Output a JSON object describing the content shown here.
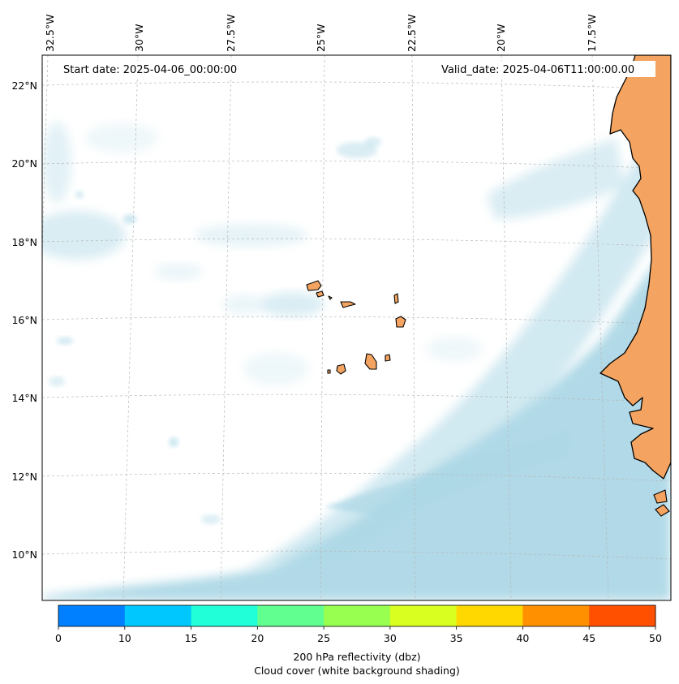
{
  "map": {
    "start_date": "Start date: 2025-04-06_00:00:00",
    "valid_date": "Valid_date: 2025-04-06T11:00:00.00",
    "lon_labels": [
      "32.5°W",
      "30°W",
      "27.5°W",
      "25°W",
      "22.5°W",
      "20°W",
      "17.5°W"
    ],
    "lat_labels": [
      "22°N",
      "20°N",
      "18°N",
      "16°N",
      "14°N",
      "12°N",
      "10°N"
    ],
    "colors": {
      "land": "#f4a460",
      "cloud": "#add8e6",
      "ocean": "#ffffff",
      "coastline": "#000000"
    }
  },
  "colorbar": {
    "ticks": [
      "0",
      "10",
      "15",
      "20",
      "25",
      "30",
      "35",
      "40",
      "45",
      "50"
    ],
    "colors": [
      "#0080ff",
      "#00c8ff",
      "#20ffd8",
      "#60ff90",
      "#98ff50",
      "#d8ff20",
      "#ffd800",
      "#ff9000",
      "#ff5000"
    ],
    "label_line1": "200 hPa reflectivity (dbz)",
    "label_line2": "Cloud cover (white background shading)"
  }
}
